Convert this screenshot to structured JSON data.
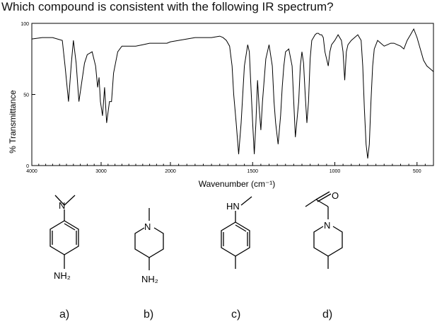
{
  "question": "Which compound is consistent with the following IR spectrum?",
  "chart_data": {
    "type": "line",
    "title": "",
    "xlabel": "Wavenumber (cm⁻¹)",
    "ylabel": "% Transmittance",
    "xlim": [
      4000,
      400
    ],
    "ylim": [
      0,
      100
    ],
    "x_ticks": [
      4000,
      3000,
      2000,
      1500,
      1000,
      500
    ],
    "x_tick_labels": [
      "4000",
      "3000",
      "2000",
      "1500",
      "1000",
      "500"
    ],
    "y_ticks": [
      0,
      50,
      100
    ],
    "y_tick_labels": [
      "0",
      "50",
      "100"
    ],
    "grid": false,
    "series": [
      {
        "name": "",
        "x": [
          4000,
          3850,
          3700,
          3560,
          3520,
          3470,
          3430,
          3400,
          3360,
          3320,
          3240,
          3200,
          3130,
          3080,
          3050,
          3030,
          3010,
          2980,
          2950,
          2920,
          2880,
          2850,
          2820,
          2760,
          2700,
          2600,
          2500,
          2400,
          2300,
          2200,
          2150,
          2100,
          2050,
          2000,
          1950,
          1900,
          1850,
          1800,
          1750,
          1700,
          1680,
          1660,
          1640,
          1625,
          1615,
          1600,
          1585,
          1570,
          1550,
          1530,
          1520,
          1510,
          1500,
          1490,
          1480,
          1470,
          1460,
          1450,
          1440,
          1420,
          1400,
          1380,
          1370,
          1360,
          1345,
          1330,
          1320,
          1310,
          1300,
          1280,
          1260,
          1250,
          1240,
          1220,
          1210,
          1200,
          1190,
          1180,
          1170,
          1160,
          1150,
          1140,
          1130,
          1120,
          1110,
          1100,
          1090,
          1080,
          1070,
          1060,
          1040,
          1030,
          1020,
          1000,
          980,
          960,
          950,
          940,
          930,
          920,
          900,
          880,
          860,
          840,
          830,
          820,
          810,
          800,
          790,
          780,
          770,
          760,
          740,
          720,
          700,
          680,
          660,
          640,
          620,
          600,
          580,
          560,
          540,
          520,
          500,
          480,
          460,
          440,
          420,
          400
        ],
        "y": [
          89,
          90,
          90,
          88,
          70,
          45,
          72,
          88,
          72,
          45,
          72,
          78,
          80,
          70,
          55,
          62,
          45,
          35,
          55,
          30,
          45,
          45,
          65,
          80,
          84,
          84,
          84,
          85,
          86,
          86,
          86,
          86,
          86,
          87,
          88,
          89,
          90,
          90,
          90,
          91,
          90,
          88,
          84,
          70,
          50,
          30,
          8,
          30,
          70,
          85,
          80,
          55,
          30,
          8,
          30,
          60,
          40,
          25,
          45,
          75,
          85,
          70,
          45,
          30,
          15,
          35,
          55,
          70,
          80,
          82,
          70,
          45,
          20,
          45,
          70,
          80,
          72,
          50,
          30,
          45,
          75,
          88,
          90,
          92,
          93,
          93,
          92,
          92,
          90,
          80,
          70,
          80,
          85,
          88,
          92,
          88,
          80,
          60,
          80,
          85,
          88,
          90,
          92,
          88,
          70,
          40,
          15,
          5,
          15,
          45,
          70,
          82,
          88,
          86,
          84,
          85,
          86,
          86,
          85,
          84,
          82,
          88,
          92,
          96,
          90,
          82,
          74,
          70,
          68,
          66
        ]
      }
    ]
  },
  "options": [
    {
      "letter": "a)",
      "substituents": [
        "N",
        "NH₂"
      ]
    },
    {
      "letter": "b)",
      "substituents": [
        "N",
        "NH₂"
      ]
    },
    {
      "letter": "c)",
      "substituents": [
        "HN"
      ]
    },
    {
      "letter": "d)",
      "substituents": [
        "O",
        "N"
      ]
    }
  ]
}
